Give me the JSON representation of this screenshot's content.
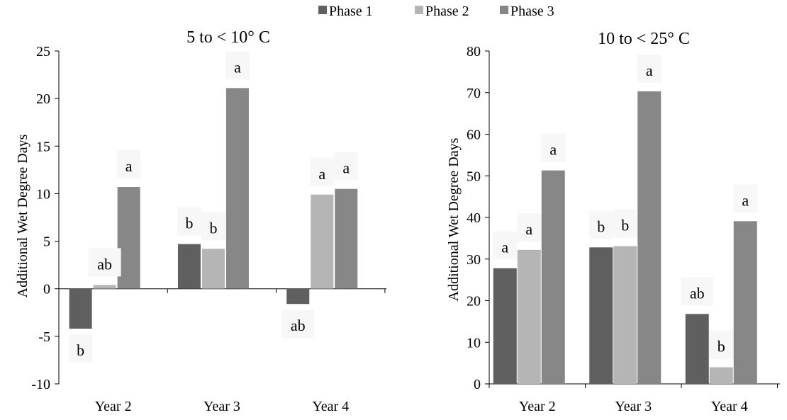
{
  "legend": [
    "Phase 1",
    "Phase 2",
    "Phase 3"
  ],
  "colors": {
    "Phase 1": "#5f5f5f",
    "Phase 2": "#b5b5b5",
    "Phase 3": "#878787",
    "label_box": "#f7f7f7"
  },
  "chart_data": [
    {
      "type": "bar",
      "title": "5 to < 10° C",
      "ylabel": "Additional Wet Degree Days",
      "xlabel": "",
      "categories": [
        "Year 2",
        "Year 3",
        "Year 4"
      ],
      "ylim": [
        -10,
        25
      ],
      "yticks": [
        -10,
        -5,
        0,
        5,
        10,
        15,
        20,
        25
      ],
      "ytick_labels": [
        "-10",
        "-5",
        "0",
        "5",
        "10",
        "15",
        "20",
        "25"
      ],
      "legend_position": "top",
      "grid": false,
      "series": [
        {
          "name": "Phase 1",
          "values": [
            -4.2,
            4.7,
            -1.6
          ]
        },
        {
          "name": "Phase 2",
          "values": [
            0.4,
            4.2,
            9.9
          ]
        },
        {
          "name": "Phase 3",
          "values": [
            10.7,
            21.1,
            10.5
          ]
        }
      ],
      "annotations": [
        {
          "category": "Year 2",
          "series": "Phase 1",
          "text": "b"
        },
        {
          "category": "Year 2",
          "series": "Phase 2",
          "text": "ab"
        },
        {
          "category": "Year 2",
          "series": "Phase 3",
          "text": "a"
        },
        {
          "category": "Year 3",
          "series": "Phase 1",
          "text": "b"
        },
        {
          "category": "Year 3",
          "series": "Phase 2",
          "text": "b"
        },
        {
          "category": "Year 3",
          "series": "Phase 3",
          "text": "a"
        },
        {
          "category": "Year 4",
          "series": "Phase 1",
          "text": "ab"
        },
        {
          "category": "Year 4",
          "series": "Phase 2",
          "text": "a"
        },
        {
          "category": "Year 4",
          "series": "Phase 3",
          "text": "a"
        }
      ]
    },
    {
      "type": "bar",
      "title": "10 to < 25° C",
      "ylabel": "Additional Wet Degree Days",
      "xlabel": "",
      "categories": [
        "Year 2",
        "Year 3",
        "Year 4"
      ],
      "ylim": [
        0,
        80
      ],
      "yticks": [
        0,
        10,
        20,
        30,
        40,
        50,
        60,
        70,
        80
      ],
      "ytick_labels": [
        "0",
        "10",
        "20",
        "30",
        "40",
        "50",
        "60",
        "70",
        "80"
      ],
      "legend_position": "top",
      "grid": false,
      "series": [
        {
          "name": "Phase 1",
          "values": [
            27.8,
            32.8,
            16.8
          ]
        },
        {
          "name": "Phase 2",
          "values": [
            32.2,
            33.1,
            4.0
          ]
        },
        {
          "name": "Phase 3",
          "values": [
            51.3,
            70.3,
            39.1
          ]
        }
      ],
      "annotations": [
        {
          "category": "Year 2",
          "series": "Phase 1",
          "text": "a"
        },
        {
          "category": "Year 2",
          "series": "Phase 2",
          "text": "a"
        },
        {
          "category": "Year 2",
          "series": "Phase 3",
          "text": "a"
        },
        {
          "category": "Year 3",
          "series": "Phase 1",
          "text": "b"
        },
        {
          "category": "Year 3",
          "series": "Phase 2",
          "text": "b"
        },
        {
          "category": "Year 3",
          "series": "Phase 3",
          "text": "a"
        },
        {
          "category": "Year 4",
          "series": "Phase 1",
          "text": "ab"
        },
        {
          "category": "Year 4",
          "series": "Phase 2",
          "text": "b"
        },
        {
          "category": "Year 4",
          "series": "Phase 3",
          "text": "a"
        }
      ]
    }
  ]
}
